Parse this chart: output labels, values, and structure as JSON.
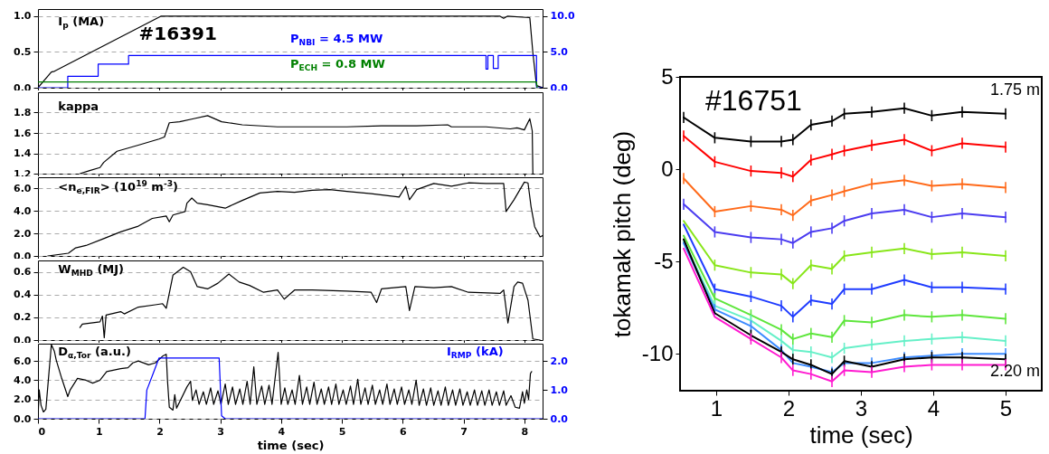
{
  "chart_data": [
    {
      "type": "line",
      "xlim": [
        0,
        8.3
      ],
      "xticks": [
        0,
        1,
        2,
        3,
        4,
        5,
        6,
        7,
        8
      ],
      "ylim": [
        0,
        1.1
      ],
      "yticks": [
        {
          "value": 0,
          "label": "0.0"
        },
        {
          "value": 0.5,
          "label": "0.5"
        },
        {
          "value": 1,
          "label": "1.0"
        }
      ],
      "y2lim": [
        0,
        11
      ],
      "y2ticks": [
        {
          "value": 0,
          "label": "0.0"
        },
        {
          "value": 5,
          "label": "5.0"
        },
        {
          "value": 10,
          "label": "10.0"
        }
      ],
      "grid": "y",
      "tick_labels": "y",
      "annotations": [
        "#16391"
      ],
      "series": [
        {
          "name": "I$_{p}$ (MA)",
          "color": "#000000",
          "x": [
            0,
            0.22,
            0.27,
            2.02,
            7.6,
            7.66,
            7.72,
            8.09,
            8.14,
            8.2,
            8.3
          ],
          "values": [
            0,
            0.22,
            0.23,
            1.0,
            1.0,
            0.97,
            1.0,
            0.98,
            0.49,
            0.03,
            0
          ]
        },
        {
          "name": "P$_{NBI}$ = 4.5 MW",
          "type": "step",
          "axis": "y2",
          "color": "#0000ff",
          "x": [
            0,
            0.49,
            0.99,
            1.49,
            7.37,
            7.4,
            7.49,
            7.57,
            8.2,
            8.3
          ],
          "values": [
            0,
            1.6,
            3.3,
            4.5,
            2.6,
            4.5,
            2.7,
            4.5,
            0,
            0
          ]
        },
        {
          "name": "P$_{ECH}$ = 0.8 MW",
          "axis": "y2",
          "color": "#008000",
          "x": [
            0,
            8.2,
            8.21
          ],
          "values": [
            0.8,
            0.8,
            0
          ]
        }
      ]
    },
    {
      "type": "line",
      "xlim": [
        0,
        8.3
      ],
      "xticks": [
        0,
        1,
        2,
        3,
        4,
        5,
        6,
        7,
        8
      ],
      "ylim": [
        1.2,
        2.0
      ],
      "yticks": [
        {
          "value": 1.2,
          "label": "1.2"
        },
        {
          "value": 1.4,
          "label": "1.4"
        },
        {
          "value": 1.6,
          "label": "1.6"
        },
        {
          "value": 1.8,
          "label": "1.8"
        }
      ],
      "grid": "y",
      "tick_labels": "y",
      "series": [
        {
          "name": "kappa",
          "color": "#000000",
          "x": [
            0.69,
            0.85,
            1.02,
            1.08,
            1.3,
            1.65,
            1.99,
            2.08,
            2.16,
            2.33,
            2.56,
            2.79,
            3.02,
            3.36,
            3.94,
            4.51,
            5.08,
            5.65,
            6.23,
            6.74,
            6.8,
            7.37,
            7.77,
            7.88,
            8.0,
            8.09,
            8.13,
            8.14
          ],
          "values": [
            1.2,
            1.23,
            1.26,
            1.31,
            1.42,
            1.48,
            1.54,
            1.56,
            1.7,
            1.71,
            1.74,
            1.77,
            1.71,
            1.68,
            1.66,
            1.66,
            1.66,
            1.67,
            1.67,
            1.68,
            1.66,
            1.66,
            1.64,
            1.65,
            1.63,
            1.74,
            1.62,
            1.2
          ]
        }
      ]
    },
    {
      "type": "line",
      "xlim": [
        0,
        8.3
      ],
      "xticks": [
        0,
        1,
        2,
        3,
        4,
        5,
        6,
        7,
        8
      ],
      "ylim": [
        0,
        7
      ],
      "yticks": [
        {
          "value": 0,
          "label": "0.0"
        },
        {
          "value": 2,
          "label": "2.0"
        },
        {
          "value": 4,
          "label": "4.0"
        },
        {
          "value": 6,
          "label": "6.0"
        }
      ],
      "grid": "y",
      "tick_labels": "y",
      "series": [
        {
          "name": "<n$_{e,FIR}$> (10$^{19}$ m$^{-3}$)",
          "color": "#000000",
          "x": [
            0.16,
            0.5,
            0.62,
            0.79,
            1.08,
            1.36,
            1.65,
            1.88,
            2.11,
            2.16,
            2.22,
            2.42,
            2.45,
            2.53,
            2.62,
            2.79,
            3.08,
            3.36,
            3.65,
            3.94,
            4.22,
            4.51,
            4.8,
            5.08,
            5.48,
            5.94,
            6.05,
            6.11,
            6.23,
            6.51,
            6.8,
            7.08,
            7.37,
            7.66,
            7.7,
            7.83,
            8.0,
            8.06,
            8.11,
            8.17,
            8.26,
            8.3
          ],
          "values": [
            0,
            0.24,
            0.72,
            0.93,
            1.54,
            2.14,
            2.65,
            3.34,
            3.55,
            3.04,
            3.64,
            3.95,
            4.7,
            5.15,
            4.7,
            4.55,
            4.25,
            4.94,
            5.6,
            5.75,
            5.66,
            5.84,
            5.9,
            5.75,
            5.54,
            5.24,
            6.2,
            5.0,
            5.9,
            6.45,
            6.2,
            6.5,
            6.45,
            6.45,
            3.95,
            5.0,
            6.57,
            6.5,
            4.4,
            2.6,
            1.69,
            1.8
          ]
        }
      ]
    },
    {
      "type": "line",
      "xlim": [
        0,
        8.3
      ],
      "xticks": [
        0,
        1,
        2,
        3,
        4,
        5,
        6,
        7,
        8
      ],
      "ylim": [
        0,
        0.7
      ],
      "yticks": [
        {
          "value": 0,
          "label": "0.0"
        },
        {
          "value": 0.2,
          "label": "0.2"
        },
        {
          "value": 0.4,
          "label": "0.4"
        },
        {
          "value": 0.6,
          "label": "0.6"
        }
      ],
      "grid": "y",
      "tick_labels": "y",
      "series": [
        {
          "name": "W$_{MHD}$ (MJ)",
          "color": "#000000",
          "x": [
            0.69,
            0.73,
            1.02,
            1.06,
            1.09,
            1.12,
            1.36,
            1.42,
            1.65,
            1.93,
            2.05,
            2.11,
            2.22,
            2.39,
            2.51,
            2.62,
            2.79,
            2.96,
            3.14,
            3.31,
            3.48,
            3.71,
            3.94,
            4.05,
            4.22,
            4.51,
            5.08,
            5.48,
            5.57,
            5.65,
            6.05,
            6.11,
            6.2,
            6.51,
            6.8,
            7.08,
            7.6,
            7.66,
            7.73,
            7.83,
            7.89,
            7.97,
            8.06,
            8.14,
            8.26
          ],
          "values": [
            0.11,
            0.14,
            0.16,
            0.21,
            0.02,
            0.22,
            0.25,
            0.23,
            0.29,
            0.31,
            0.32,
            0.28,
            0.57,
            0.64,
            0.6,
            0.47,
            0.45,
            0.5,
            0.58,
            0.51,
            0.48,
            0.42,
            0.44,
            0.36,
            0.44,
            0.44,
            0.43,
            0.42,
            0.33,
            0.45,
            0.47,
            0.26,
            0.47,
            0.46,
            0.47,
            0.42,
            0.41,
            0.44,
            0.15,
            0.47,
            0.51,
            0.5,
            0.35,
            0.01,
            0
          ]
        }
      ]
    },
    {
      "type": "line",
      "xlim": [
        0,
        8.3
      ],
      "xticks": [
        0,
        1,
        2,
        3,
        4,
        5,
        6,
        7,
        8
      ],
      "ylim": [
        0,
        7.8
      ],
      "yticks": [
        {
          "value": 0,
          "label": "0.0"
        },
        {
          "value": 2,
          "label": "2.0"
        },
        {
          "value": 4,
          "label": "4.0"
        },
        {
          "value": 6,
          "label": "6.0"
        }
      ],
      "y2lim": [
        0,
        2.6
      ],
      "y2ticks": [
        {
          "value": 0,
          "label": "0.0"
        },
        {
          "value": 1,
          "label": "1.0"
        },
        {
          "value": 2,
          "label": "2.0"
        }
      ],
      "grid": "y",
      "xlabel": "time (sec)",
      "series": [
        {
          "name": "D$_{α,Tor}$ (a.u.)",
          "color": "#000000",
          "x": [
            0,
            0.02,
            0.05,
            0.09,
            0.13,
            0.22,
            0.27,
            0.3,
            0.39,
            0.49,
            0.53,
            0.65,
            0.79,
            0.9,
            1.02,
            1.13,
            1.36,
            1.48,
            1.56,
            1.65,
            1.82,
            1.93,
            2.05,
            2.11,
            2.13,
            2.16,
            2.22,
            2.25,
            2.28,
            2.45,
            2.51,
            2.54,
            2.6,
            2.65,
            2.72,
            2.77,
            2.84,
            2.89,
            2.96,
            3.01,
            3.08,
            3.13,
            3.2,
            3.25,
            3.32,
            3.37,
            3.44,
            3.49,
            3.55,
            3.6,
            3.68,
            3.73,
            3.8,
            3.85,
            3.95,
            4.0,
            4.06,
            4.11,
            4.18,
            4.23,
            4.3,
            4.35,
            4.42,
            4.47,
            4.54,
            4.59,
            4.66,
            4.71,
            4.78,
            4.83,
            4.9,
            4.95,
            5.02,
            5.07,
            5.14,
            5.19,
            5.26,
            5.31,
            5.38,
            5.43,
            5.5,
            5.55,
            5.62,
            5.67,
            5.74,
            5.79,
            5.86,
            5.91,
            5.98,
            6.03,
            6.1,
            6.15,
            6.22,
            6.27,
            6.34,
            6.39,
            6.46,
            6.51,
            6.58,
            6.63,
            6.7,
            6.75,
            6.82,
            6.87,
            6.94,
            6.99,
            7.06,
            7.11,
            7.18,
            7.23,
            7.3,
            7.35,
            7.42,
            7.47,
            7.54,
            7.59,
            7.66,
            7.7,
            7.78,
            7.85,
            7.92,
            7.97,
            8.0,
            8.04,
            8.07,
            8.1,
            8.12
          ],
          "values": [
            0,
            3.0,
            1.4,
            0.7,
            1.0,
            7.7,
            7.0,
            6.1,
            4.2,
            2.3,
            3.0,
            4.2,
            4.0,
            3.7,
            4.0,
            4.9,
            5.2,
            5.3,
            5.8,
            6.0,
            5.6,
            5.8,
            6.5,
            6.7,
            4.0,
            1.2,
            0.9,
            2.5,
            1.1,
            3.3,
            3.9,
            1.9,
            3.0,
            1.5,
            2.8,
            1.5,
            3.2,
            1.5,
            2.9,
            1.5,
            3.6,
            1.5,
            3.3,
            1.5,
            3.1,
            1.5,
            3.9,
            1.5,
            5.4,
            1.5,
            3.4,
            1.5,
            3.5,
            1.5,
            6.9,
            1.5,
            3.2,
            1.5,
            3.0,
            1.5,
            4.5,
            1.5,
            3.3,
            1.5,
            3.8,
            1.5,
            3.1,
            1.5,
            3.3,
            1.5,
            3.6,
            1.5,
            3.0,
            1.5,
            3.4,
            1.5,
            4.1,
            1.5,
            3.2,
            1.5,
            3.5,
            1.5,
            3.0,
            1.5,
            3.6,
            1.5,
            3.1,
            1.5,
            3.3,
            1.5,
            3.0,
            1.5,
            4.0,
            1.4,
            3.1,
            1.4,
            3.2,
            1.4,
            2.9,
            1.4,
            3.3,
            1.4,
            3.0,
            1.4,
            3.1,
            1.4,
            2.8,
            1.4,
            3.0,
            1.4,
            2.9,
            1.4,
            3.0,
            1.4,
            2.8,
            1.4,
            2.9,
            1.4,
            2.4,
            1.2,
            1.1,
            2.8,
            1.6,
            3.0,
            2.0,
            4.7,
            4.9
          ]
        },
        {
          "name": "I$_{RMP}$ (kA)",
          "axis": "y2",
          "color": "#0000ff",
          "x": [
            0,
            1.76,
            1.79,
            1.9,
            1.99,
            2.98,
            3.02,
            3.08,
            8.3
          ],
          "values": [
            0,
            0,
            0.99,
            1.6,
            2.1,
            2.1,
            0.1,
            0,
            0
          ]
        }
      ]
    },
    {
      "type": "line",
      "xlim": [
        0.5,
        5.5
      ],
      "xticks": [
        1,
        2,
        3,
        4,
        5
      ],
      "ylim": [
        -12,
        5
      ],
      "yticks": [
        5,
        0,
        -5,
        -10
      ],
      "xlabel": "time (sec)",
      "ylabel": "tokamak pitch (deg)",
      "annotations": [
        "#16751"
      ],
      "x": [
        0.55,
        0.98,
        1.48,
        1.9,
        2.06,
        2.31,
        2.6,
        2.77,
        3.15,
        3.6,
        3.98,
        4.4,
        5.0
      ],
      "series": [
        {
          "name": "1.75 m",
          "color": "#000000",
          "values": [
            2.8,
            1.7,
            1.5,
            1.5,
            1.6,
            2.4,
            2.6,
            3.0,
            3.1,
            3.3,
            2.9,
            3.1,
            3.0
          ],
          "errors": [
            0.3,
            0.3,
            0.3,
            0.3,
            0.3,
            0.3,
            0.3,
            0.3,
            0.3,
            0.3,
            0.3,
            0.3,
            0.3
          ]
        },
        {
          "color": "#ff0000",
          "values": [
            1.8,
            0.4,
            -0.1,
            -0.2,
            -0.4,
            0.5,
            0.8,
            1.0,
            1.3,
            1.6,
            1.0,
            1.4,
            1.2
          ],
          "errors": [
            0.3,
            0.3,
            0.3,
            0.3,
            0.3,
            0.3,
            0.3,
            0.3,
            0.3,
            0.3,
            0.3,
            0.3,
            0.3
          ]
        },
        {
          "color": "#ff6a1a",
          "values": [
            -0.5,
            -2.3,
            -2.0,
            -2.2,
            -2.5,
            -1.7,
            -1.4,
            -1.2,
            -0.8,
            -0.6,
            -0.9,
            -0.8,
            -1.0
          ],
          "errors": [
            0.3,
            0.3,
            0.3,
            0.3,
            0.3,
            0.3,
            0.3,
            0.3,
            0.3,
            0.3,
            0.3,
            0.3,
            0.3
          ]
        },
        {
          "color": "#4b3cf0",
          "values": [
            -1.9,
            -3.4,
            -3.7,
            -3.8,
            -4.0,
            -3.4,
            -3.2,
            -2.8,
            -2.4,
            -2.2,
            -2.6,
            -2.4,
            -2.6
          ],
          "errors": [
            0.3,
            0.3,
            0.3,
            0.3,
            0.3,
            0.3,
            0.3,
            0.3,
            0.3,
            0.3,
            0.3,
            0.3,
            0.3
          ]
        },
        {
          "color": "#88e619",
          "values": [
            -2.8,
            -5.2,
            -5.6,
            -5.7,
            -6.2,
            -5.2,
            -5.4,
            -4.7,
            -4.5,
            -4.3,
            -4.6,
            -4.5,
            -4.7
          ],
          "errors": [
            null,
            0.3,
            0.3,
            0.3,
            0.3,
            0.3,
            0.3,
            0.3,
            0.3,
            0.3,
            0.3,
            0.3,
            0.3
          ]
        },
        {
          "color": "#1f3cff",
          "values": [
            -3.0,
            -6.5,
            -6.9,
            -7.4,
            -8.0,
            -7.1,
            -7.3,
            -6.5,
            -6.5,
            -6.0,
            -6.4,
            -6.4,
            -6.5
          ],
          "errors": [
            null,
            0.3,
            0.3,
            0.3,
            0.3,
            0.3,
            0.3,
            0.3,
            0.3,
            0.3,
            0.3,
            0.3,
            0.3
          ]
        },
        {
          "color": "#5ee63c",
          "values": [
            -3.6,
            -7.0,
            -7.9,
            -8.7,
            -9.2,
            -8.9,
            -9.1,
            -8.2,
            -8.3,
            -7.9,
            -8.0,
            -7.9,
            -8.1
          ],
          "errors": [
            null,
            0.3,
            0.3,
            0.3,
            0.3,
            0.3,
            0.3,
            0.3,
            0.3,
            0.3,
            0.3,
            0.3,
            0.3
          ]
        },
        {
          "color": "#66f0c8",
          "values": [
            -3.9,
            -7.4,
            -8.2,
            -9.3,
            -9.8,
            -9.9,
            -10.2,
            -9.7,
            -9.5,
            -9.3,
            -9.2,
            -9.1,
            -9.3
          ],
          "errors": [
            null,
            0.3,
            0.3,
            0.3,
            0.3,
            0.3,
            0.3,
            0.3,
            0.3,
            0.3,
            0.3,
            0.3,
            0.3
          ]
        },
        {
          "color": "#3d8cff",
          "values": [
            -4.0,
            -7.6,
            -8.5,
            -9.8,
            -10.5,
            -10.7,
            -11.0,
            -10.5,
            -10.5,
            -10.2,
            -10.1,
            -10.0,
            -10.0
          ],
          "errors": [
            null,
            0.3,
            0.3,
            0.3,
            null,
            null,
            0.3,
            null,
            0.3,
            0.3,
            0.3,
            0.3,
            0.3
          ]
        },
        {
          "color": "#000000",
          "values": [
            -3.8,
            -7.8,
            -9.0,
            -9.9,
            -10.3,
            -10.6,
            -11.1,
            -10.4,
            -10.7,
            -10.3,
            -10.2,
            -10.2,
            -10.3
          ],
          "errors": [
            null,
            null,
            0.3,
            0.3,
            0.3,
            0.3,
            0.3,
            0.3,
            0.3,
            0.3,
            0.3,
            0.3,
            0.3
          ]
        },
        {
          "name": "2.20 m",
          "color": "#ff1ad0",
          "values": [
            -4.3,
            -8.0,
            -9.2,
            -10.2,
            -10.9,
            -11.1,
            -11.5,
            -10.9,
            -11.0,
            -10.7,
            -10.6,
            -10.6,
            -10.6
          ],
          "errors": [
            null,
            null,
            0.3,
            0.3,
            0.3,
            0.3,
            0.3,
            0.3,
            0.3,
            0.3,
            0.3,
            0.3,
            0.3
          ]
        }
      ]
    }
  ]
}
